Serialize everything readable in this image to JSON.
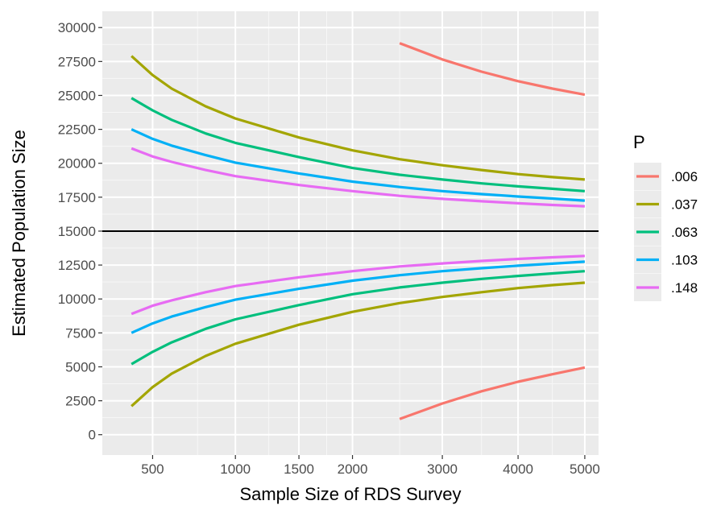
{
  "chart_data": {
    "type": "line",
    "xlabel": "Sample Size of RDS Survey",
    "ylabel": "Estimated Population Size",
    "xlim": [
      280,
      5220
    ],
    "ylim": [
      -1500,
      31200
    ],
    "x_scale": "sqrt",
    "x_ticks": [
      "500",
      "1000",
      "1500",
      "2000",
      "3000",
      "4000",
      "5000"
    ],
    "y_ticks": [
      "0",
      "2500",
      "5000",
      "7500",
      "10000",
      "12500",
      "15000",
      "17500",
      "20000",
      "22500",
      "25000",
      "27500",
      "30000"
    ],
    "reference_line": 15000,
    "grid": true,
    "legend": {
      "title": "P",
      "placement": "right",
      "entries": [
        ".006",
        ".037",
        ".063",
        ".103",
        ".148"
      ]
    },
    "series": [
      {
        "name": ".006",
        "color": "#F8766D",
        "x": [
          2500,
          3000,
          3500,
          4000,
          4500,
          5000
        ],
        "upper": [
          28850,
          27650,
          26750,
          26050,
          25500,
          25050
        ],
        "lower": [
          1150,
          2300,
          3200,
          3900,
          4450,
          4950
        ]
      },
      {
        "name": ".037",
        "color": "#A3A500",
        "x": [
          400,
          500,
          600,
          800,
          1000,
          1500,
          2000,
          2500,
          3000,
          3500,
          4000,
          4500,
          5000
        ],
        "upper": [
          27900,
          26500,
          25500,
          24200,
          23300,
          21900,
          20950,
          20300,
          19850,
          19500,
          19200,
          18980,
          18800
        ],
        "lower": [
          2100,
          3500,
          4500,
          5800,
          6700,
          8100,
          9050,
          9700,
          10150,
          10500,
          10800,
          11020,
          11200
        ]
      },
      {
        "name": ".063",
        "color": "#00BF7D",
        "x": [
          400,
          500,
          600,
          800,
          1000,
          1500,
          2000,
          2500,
          3000,
          3500,
          4000,
          4500,
          5000
        ],
        "upper": [
          24800,
          23900,
          23200,
          22200,
          21500,
          20450,
          19650,
          19150,
          18800,
          18520,
          18300,
          18120,
          17950
        ],
        "lower": [
          5200,
          6100,
          6800,
          7800,
          8500,
          9550,
          10350,
          10850,
          11200,
          11480,
          11700,
          11880,
          12050
        ]
      },
      {
        "name": ".103",
        "color": "#00B0F6",
        "x": [
          400,
          500,
          600,
          800,
          1000,
          1500,
          2000,
          2500,
          3000,
          3500,
          4000,
          4500,
          5000
        ],
        "upper": [
          22500,
          21800,
          21300,
          20600,
          20050,
          19250,
          18650,
          18250,
          17950,
          17730,
          17550,
          17400,
          17250
        ],
        "lower": [
          7500,
          8200,
          8700,
          9400,
          9950,
          10750,
          11350,
          11750,
          12050,
          12270,
          12450,
          12600,
          12750
        ]
      },
      {
        "name": ".148",
        "color": "#E76BF3",
        "x": [
          400,
          500,
          600,
          800,
          1000,
          1500,
          2000,
          2500,
          3000,
          3500,
          4000,
          4500,
          5000
        ],
        "upper": [
          21100,
          20500,
          20100,
          19500,
          19050,
          18400,
          17950,
          17600,
          17380,
          17200,
          17050,
          16930,
          16830
        ],
        "lower": [
          8900,
          9500,
          9900,
          10500,
          10950,
          11600,
          12050,
          12400,
          12620,
          12800,
          12950,
          13070,
          13170
        ]
      }
    ]
  }
}
